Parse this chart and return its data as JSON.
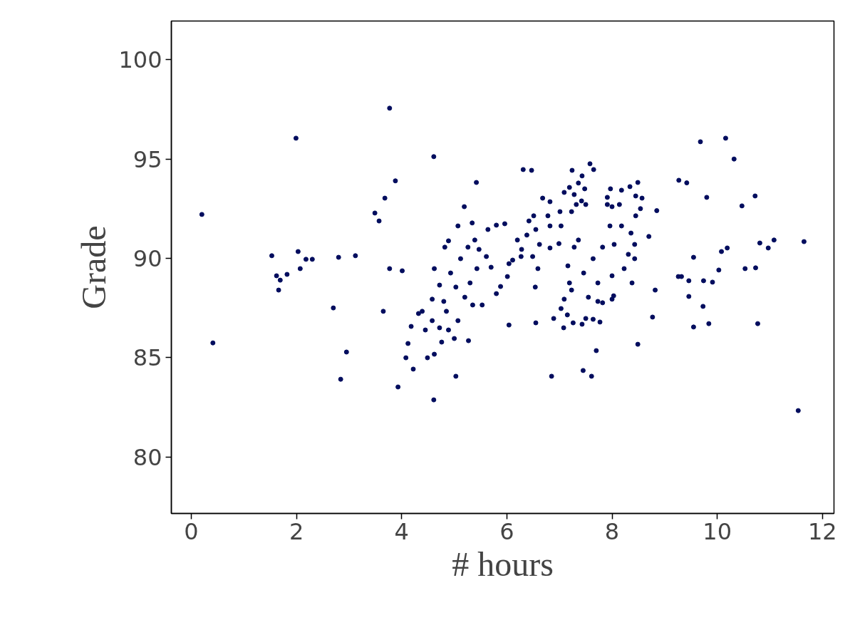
{
  "chart_data": {
    "type": "scatter",
    "xlabel": "# hours",
    "ylabel": "Grade",
    "xlim": [
      -0.38,
      12.22
    ],
    "ylim": [
      77.15,
      101.95
    ],
    "xticks": [
      0,
      2,
      4,
      6,
      8,
      10,
      12
    ],
    "yticks": [
      80,
      85,
      90,
      95,
      100
    ],
    "grid": false,
    "marker": "circle",
    "series": [
      {
        "color": "#020d5e",
        "x": [
          0.2,
          0.41,
          1.53,
          1.62,
          1.66,
          1.69,
          1.82,
          1.99,
          2.03,
          2.07,
          2.18,
          2.3,
          2.7,
          2.8,
          2.84,
          2.95,
          3.12,
          3.49,
          3.57,
          3.65,
          3.68,
          3.77,
          3.77,
          3.88,
          3.93,
          4.01,
          4.08,
          4.12,
          4.18,
          4.22,
          4.32,
          4.39,
          4.45,
          4.49,
          4.58,
          4.58,
          4.61,
          4.61,
          4.62,
          4.62,
          4.72,
          4.72,
          4.76,
          4.8,
          4.82,
          4.85,
          4.89,
          4.89,
          4.93,
          5.0,
          5.03,
          5.03,
          5.07,
          5.07,
          5.12,
          5.19,
          5.2,
          5.26,
          5.27,
          5.3,
          5.34,
          5.35,
          5.39,
          5.42,
          5.43,
          5.47,
          5.53,
          5.61,
          5.64,
          5.7,
          5.8,
          5.8,
          5.88,
          5.96,
          6.01,
          6.04,
          6.04,
          6.11,
          6.2,
          6.27,
          6.28,
          6.31,
          6.38,
          6.42,
          6.47,
          6.49,
          6.51,
          6.54,
          6.55,
          6.55,
          6.59,
          6.62,
          6.68,
          6.78,
          6.82,
          6.82,
          6.82,
          6.85,
          6.89,
          6.99,
          7.01,
          7.03,
          7.03,
          7.08,
          7.09,
          7.09,
          7.15,
          7.16,
          7.19,
          7.19,
          7.23,
          7.23,
          7.24,
          7.26,
          7.28,
          7.28,
          7.32,
          7.36,
          7.36,
          7.42,
          7.43,
          7.43,
          7.45,
          7.46,
          7.48,
          7.5,
          7.5,
          7.55,
          7.58,
          7.61,
          7.64,
          7.64,
          7.65,
          7.7,
          7.73,
          7.73,
          7.77,
          7.82,
          7.82,
          7.91,
          7.91,
          7.96,
          7.97,
          8.0,
          8.0,
          8.0,
          8.03,
          8.04,
          8.14,
          8.18,
          8.18,
          8.23,
          8.31,
          8.34,
          8.36,
          8.38,
          8.43,
          8.43,
          8.45,
          8.45,
          8.49,
          8.49,
          8.54,
          8.57,
          8.7,
          8.77,
          8.82,
          8.85,
          9.26,
          9.27,
          9.32,
          9.42,
          9.46,
          9.46,
          9.55,
          9.55,
          9.68,
          9.73,
          9.74,
          9.8,
          9.84,
          9.91,
          10.03,
          10.08,
          10.16,
          10.19,
          10.32,
          10.47,
          10.53,
          10.72,
          10.73,
          10.77,
          10.81,
          10.97,
          11.08,
          11.54,
          11.65
        ],
        "values": [
          92.21,
          85.74,
          90.13,
          89.12,
          88.4,
          88.9,
          89.19,
          96.05,
          90.34,
          89.48,
          89.95,
          89.95,
          87.5,
          90.05,
          83.91,
          85.28,
          90.13,
          92.28,
          91.88,
          87.33,
          93.03,
          97.56,
          89.48,
          93.9,
          83.52,
          89.37,
          84.99,
          85.71,
          86.57,
          84.42,
          87.22,
          87.33,
          86.39,
          84.99,
          86.86,
          87.94,
          95.12,
          82.87,
          85.17,
          89.48,
          86.5,
          88.65,
          85.78,
          87.83,
          90.56,
          87.33,
          86.39,
          90.88,
          89.26,
          85.96,
          88.55,
          84.06,
          91.63,
          86.86,
          89.98,
          92.6,
          88.04,
          90.56,
          85.85,
          88.76,
          91.78,
          87.65,
          90.92,
          93.82,
          89.48,
          90.45,
          87.65,
          90.09,
          91.45,
          89.55,
          91.67,
          88.22,
          88.58,
          91.74,
          89.08,
          89.73,
          86.64,
          89.91,
          90.92,
          90.09,
          90.45,
          94.47,
          91.17,
          91.88,
          94.43,
          90.09,
          92.14,
          88.55,
          91.45,
          86.75,
          89.48,
          90.7,
          93.03,
          92.14,
          92.85,
          91.63,
          90.52,
          84.06,
          86.97,
          90.74,
          92.35,
          91.63,
          87.47,
          86.5,
          93.32,
          87.94,
          87.15,
          89.62,
          93.57,
          88.76,
          88.4,
          92.35,
          94.43,
          86.75,
          93.21,
          90.56,
          92.71,
          93.79,
          90.92,
          92.89,
          94.15,
          86.68,
          84.35,
          89.26,
          93.5,
          92.71,
          86.97,
          88.04,
          94.76,
          84.06,
          89.98,
          86.93,
          94.47,
          85.35,
          88.76,
          87.83,
          86.79,
          90.56,
          87.76,
          93.07,
          92.71,
          91.63,
          93.5,
          92.6,
          87.94,
          89.12,
          88.11,
          90.7,
          92.71,
          93.43,
          91.63,
          89.48,
          90.2,
          93.61,
          91.27,
          88.76,
          90.7,
          89.98,
          93.14,
          92.14,
          93.82,
          85.67,
          92.5,
          93.03,
          91.1,
          87.04,
          88.4,
          92.4,
          89.08,
          93.93,
          89.08,
          93.8,
          88.87,
          88.08,
          90.05,
          86.54,
          95.87,
          87.58,
          88.87,
          93.07,
          86.71,
          88.8,
          89.41,
          90.34,
          96.05,
          90.52,
          95.0,
          92.64,
          89.48,
          93.14,
          89.52,
          86.71,
          90.77,
          90.52,
          90.92,
          82.33,
          90.84
        ]
      }
    ]
  }
}
